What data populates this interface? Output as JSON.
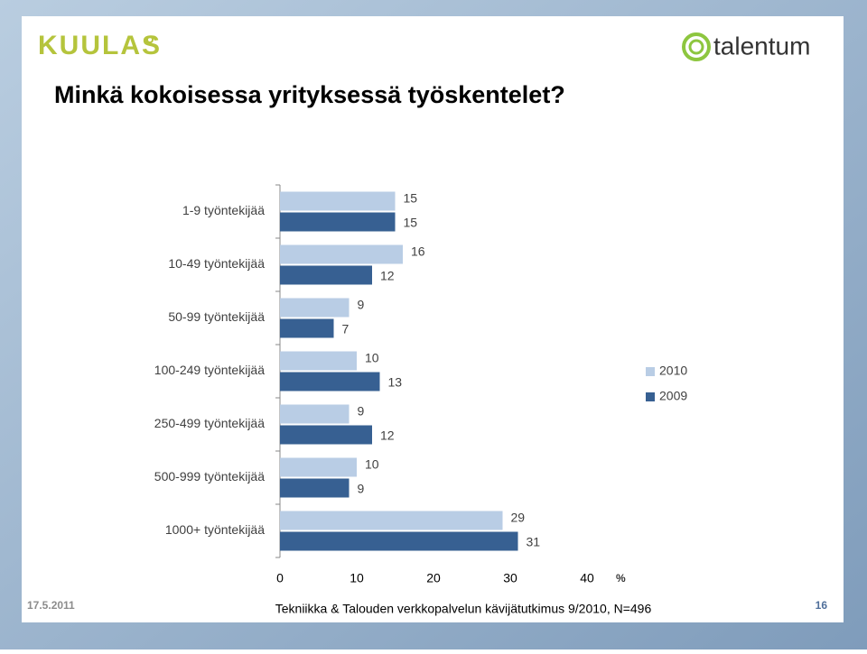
{
  "header": {
    "brand_left": "KUULAS",
    "brand_right": "talentum"
  },
  "chart_data": {
    "type": "bar",
    "orientation": "horizontal",
    "title": "Minkä kokoisessa yrityksessä työskentelet?",
    "categories": [
      "1-9 työntekijää",
      "10-49 työntekijää",
      "50-99 työntekijää",
      "100-249 työntekijää",
      "250-499 työntekijää",
      "500-999 työntekijää",
      "1000+ työntekijää"
    ],
    "series": [
      {
        "name": "2010",
        "color": "#b9cde5",
        "values": [
          15,
          16,
          9,
          10,
          9,
          10,
          29
        ]
      },
      {
        "name": "2009",
        "color": "#376092",
        "values": [
          15,
          12,
          7,
          13,
          12,
          9,
          31
        ]
      }
    ],
    "xlim": [
      0,
      40
    ],
    "xticks": [
      0,
      10,
      20,
      30,
      40
    ],
    "x_label": "%",
    "legend": "right"
  },
  "footer": {
    "date": "17.5.2011",
    "source": "Tekniikka & Talouden verkkopalvelun kävijätutkimus 9/2010, N=496",
    "page": "16"
  }
}
